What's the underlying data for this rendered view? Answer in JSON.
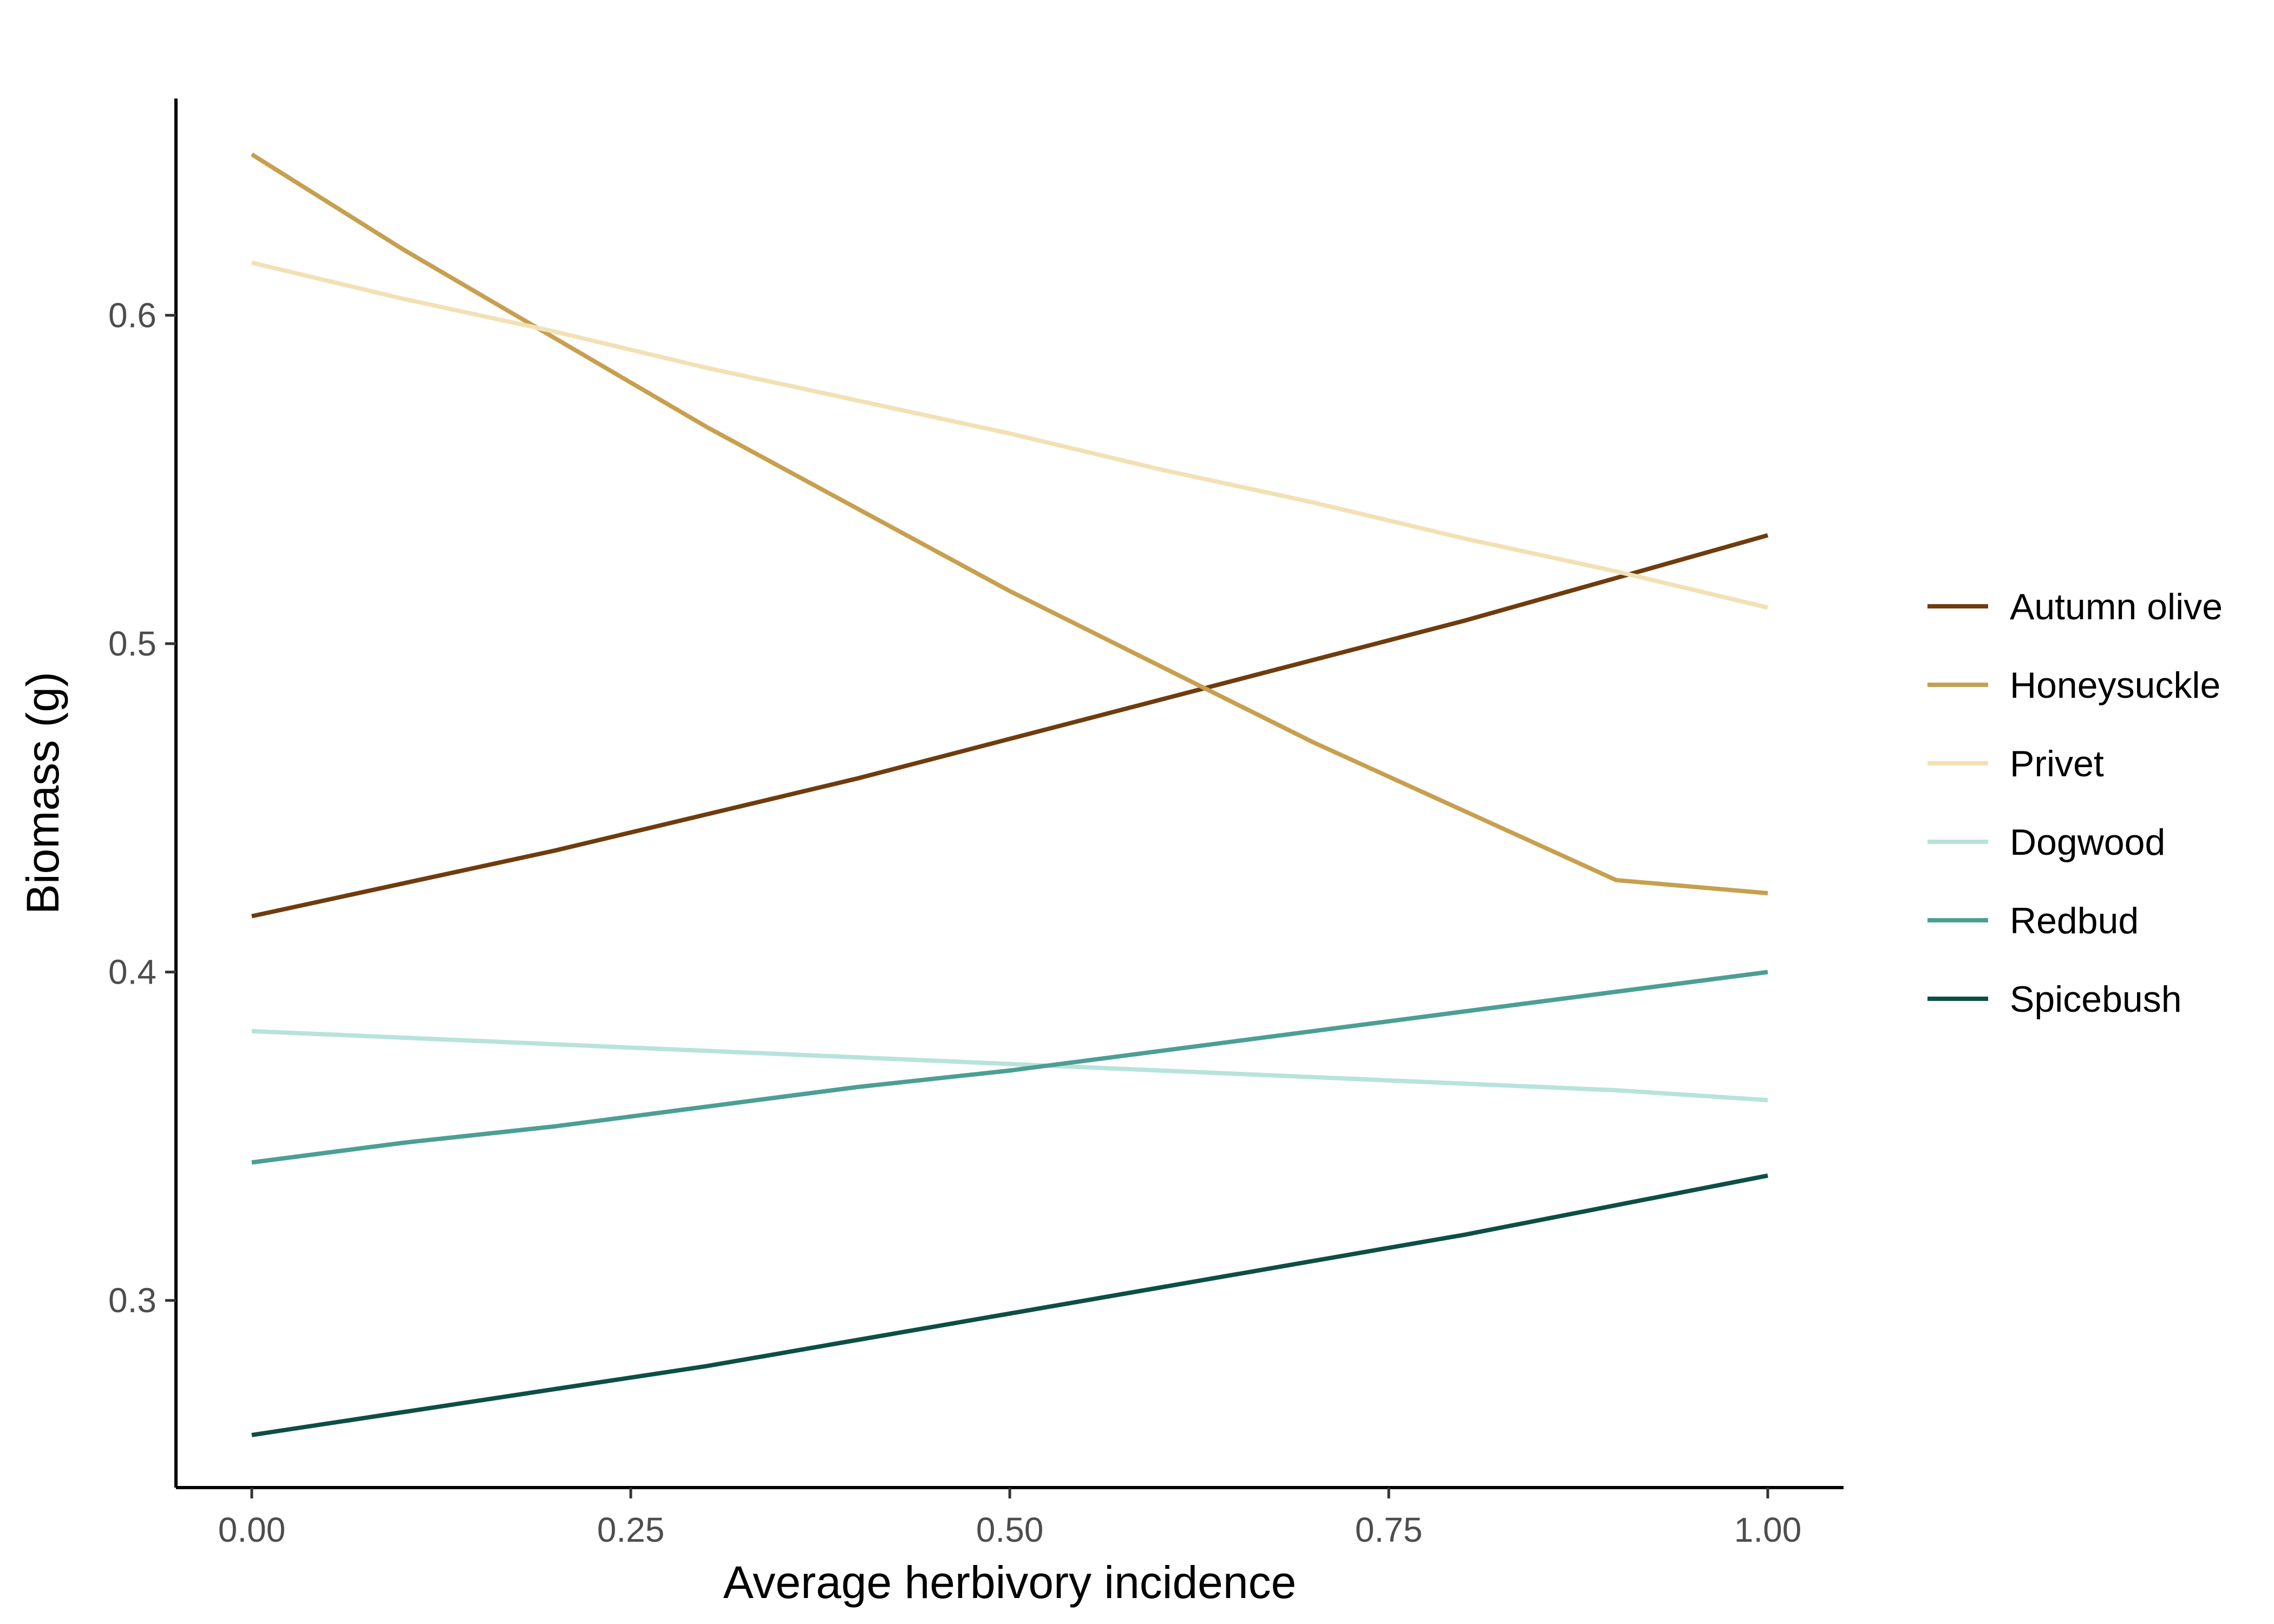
{
  "chart_data": {
    "type": "line",
    "xlabel": "Average herbivory incidence",
    "ylabel": "Biomass (g)",
    "xlim": [
      -0.05,
      1.05
    ],
    "ylim": [
      0.243,
      0.666
    ],
    "x_ticks": [
      0.0,
      0.25,
      0.5,
      0.75,
      1.0
    ],
    "x_tick_labels": [
      "0.00",
      "0.25",
      "0.50",
      "0.75",
      "1.00"
    ],
    "y_ticks": [
      0.3,
      0.4,
      0.5,
      0.6
    ],
    "y_tick_labels": [
      "0.3",
      "0.4",
      "0.5",
      "0.6"
    ],
    "grid": false,
    "legend_position": "right",
    "x": [
      0,
      0.1,
      0.2,
      0.3,
      0.4,
      0.5,
      0.6,
      0.7,
      0.8,
      0.9,
      1.0
    ],
    "series": [
      {
        "name": "Autumn olive",
        "color": "#6f3c0d",
        "values": [
          0.417,
          0.427,
          0.437,
          0.448,
          0.459,
          0.471,
          0.483,
          0.495,
          0.507,
          0.52,
          0.533
        ]
      },
      {
        "name": "Honeysuckle",
        "color": "#c7a04f",
        "values": [
          0.649,
          0.62,
          0.593,
          0.566,
          0.541,
          0.516,
          0.493,
          0.47,
          0.449,
          0.428,
          0.424
        ]
      },
      {
        "name": "Privet",
        "color": "#f2e1b4",
        "values": [
          0.616,
          0.605,
          0.595,
          0.584,
          0.574,
          0.564,
          0.553,
          0.543,
          0.532,
          0.522,
          0.511
        ]
      },
      {
        "name": "Dogwood",
        "color": "#b7e3da",
        "values": [
          0.382,
          0.38,
          0.378,
          0.376,
          0.374,
          0.372,
          0.37,
          0.368,
          0.366,
          0.364,
          0.361
        ]
      },
      {
        "name": "Redbud",
        "color": "#4b9f94",
        "values": [
          0.342,
          0.348,
          0.353,
          0.359,
          0.365,
          0.37,
          0.376,
          0.382,
          0.388,
          0.394,
          0.4
        ]
      },
      {
        "name": "Spicebush",
        "color": "#0c4f45",
        "values": [
          0.259,
          0.266,
          0.273,
          0.28,
          0.288,
          0.296,
          0.304,
          0.312,
          0.32,
          0.329,
          0.338
        ]
      }
    ]
  }
}
